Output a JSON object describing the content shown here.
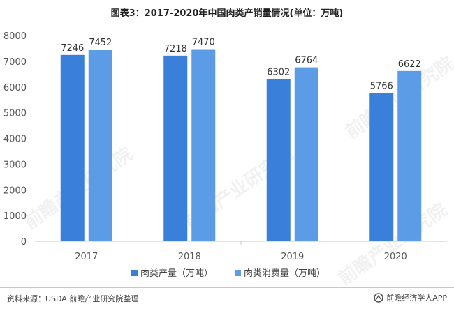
{
  "chart_data": {
    "type": "bar",
    "title": "图表3：2017-2020年中国肉类产销量情况(单位：万吨)",
    "categories": [
      "2017",
      "2018",
      "2019",
      "2020"
    ],
    "series": [
      {
        "name": "肉类产量（万吨）",
        "values": [
          7246,
          7218,
          6302,
          5766
        ],
        "color": "#3a7fd9"
      },
      {
        "name": "肉类消费量（万吨）",
        "values": [
          7452,
          7470,
          6764,
          6622
        ],
        "color": "#5c9be6"
      }
    ],
    "yticks": [
      "0",
      "1000",
      "2000",
      "3000",
      "4000",
      "5000",
      "6000",
      "7000",
      "8000"
    ],
    "ylim": [
      0,
      8000
    ],
    "legend": "bottom",
    "grid": false
  },
  "footer": {
    "source": "资料来源：USDA 前瞻产业研究院整理",
    "brand": "前瞻经济学人APP",
    "brand_icon": "qianzhan-logo-icon"
  },
  "watermark": "前瞻产业研究院"
}
